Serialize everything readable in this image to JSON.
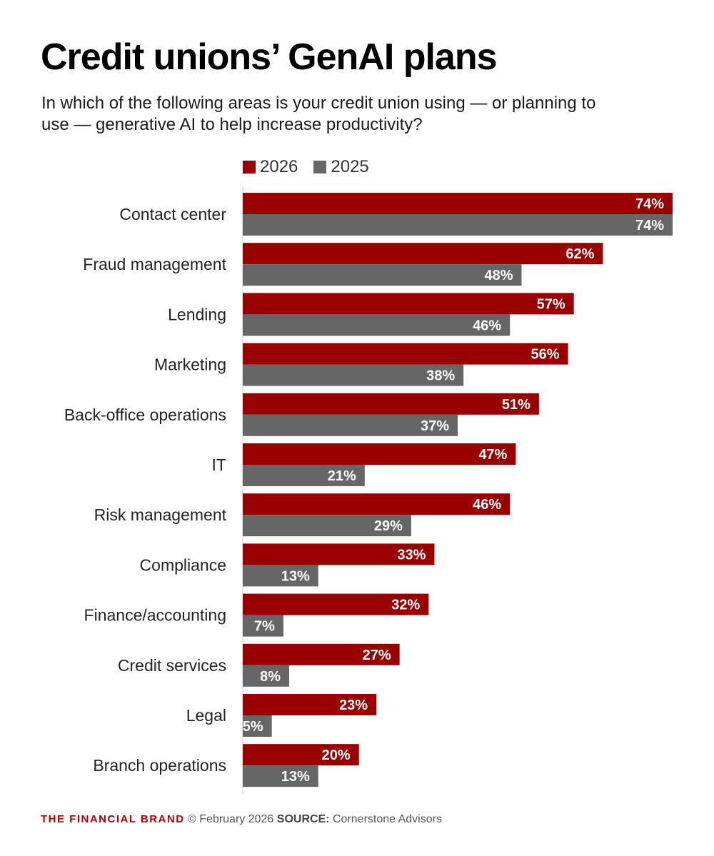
{
  "header": {
    "title": "Credit unions’ GenAI plans",
    "subtitle": "In which of the following areas is your credit union using — or planning to use — generative AI to help increase productivity?"
  },
  "chart_data": {
    "type": "bar",
    "orientation": "horizontal",
    "categories": [
      "Contact center",
      "Fraud management",
      "Lending",
      "Marketing",
      "Back-office operations",
      "IT",
      "Risk management",
      "Compliance",
      "Finance/accounting",
      "Credit services",
      "Legal",
      "Branch operations"
    ],
    "series": [
      {
        "name": "2026",
        "color": "#990000",
        "values": [
          74,
          62,
          57,
          56,
          51,
          47,
          46,
          33,
          32,
          27,
          23,
          20
        ]
      },
      {
        "name": "2025",
        "color": "#666666",
        "values": [
          74,
          48,
          46,
          38,
          37,
          21,
          29,
          13,
          7,
          8,
          5,
          13
        ]
      }
    ],
    "value_suffix": "%",
    "xlim": [
      0,
      74
    ],
    "grid": false,
    "legend_position": "top"
  },
  "footer": {
    "brand": "THE FINANCIAL BRAND",
    "date": "© February 2026",
    "source_label": "SOURCE:",
    "source": "Cornerstone Advisors"
  }
}
